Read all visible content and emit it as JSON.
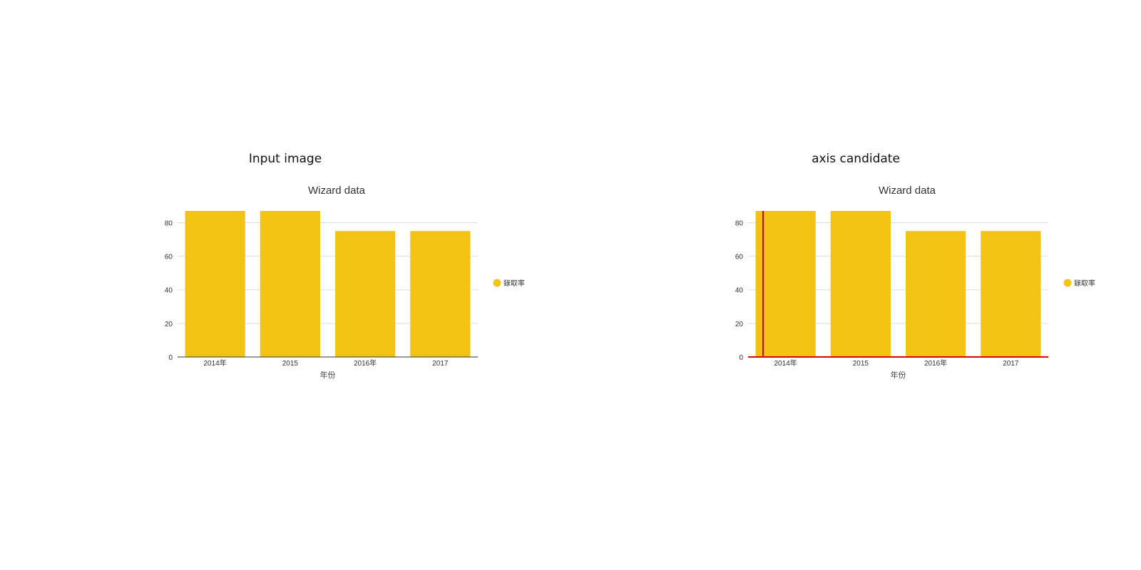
{
  "panels": [
    {
      "heading": "Input image",
      "highlight_axes": false,
      "chart_data": {
        "type": "bar",
        "title": "Wizard data",
        "xlabel": "年份",
        "ylabel": "",
        "categories": [
          "2014年",
          "2015",
          "2016年",
          "2017"
        ],
        "series": [
          {
            "name": "錄取率",
            "values": [
              87,
              87,
              75,
              75
            ]
          }
        ],
        "ylim": [
          0,
          87
        ],
        "yticks": [
          0,
          20,
          40,
          60,
          80
        ],
        "grid": true,
        "legend": "right",
        "colors": {
          "bar": "#F1C414",
          "grid": "#dddddd",
          "axis": "#333333"
        }
      }
    },
    {
      "heading": "axis candidate",
      "highlight_axes": true,
      "chart_data": {
        "type": "bar",
        "title": "Wizard data",
        "xlabel": "年份",
        "ylabel": "",
        "categories": [
          "2014年",
          "2015",
          "2016年",
          "2017"
        ],
        "series": [
          {
            "name": "錄取率",
            "values": [
              87,
              87,
              75,
              75
            ]
          }
        ],
        "ylim": [
          0,
          87
        ],
        "yticks": [
          0,
          20,
          40,
          60,
          80
        ],
        "grid": true,
        "legend": "right",
        "colors": {
          "bar": "#F1C414",
          "grid": "#dddddd",
          "axis": "#e00000"
        }
      }
    }
  ]
}
